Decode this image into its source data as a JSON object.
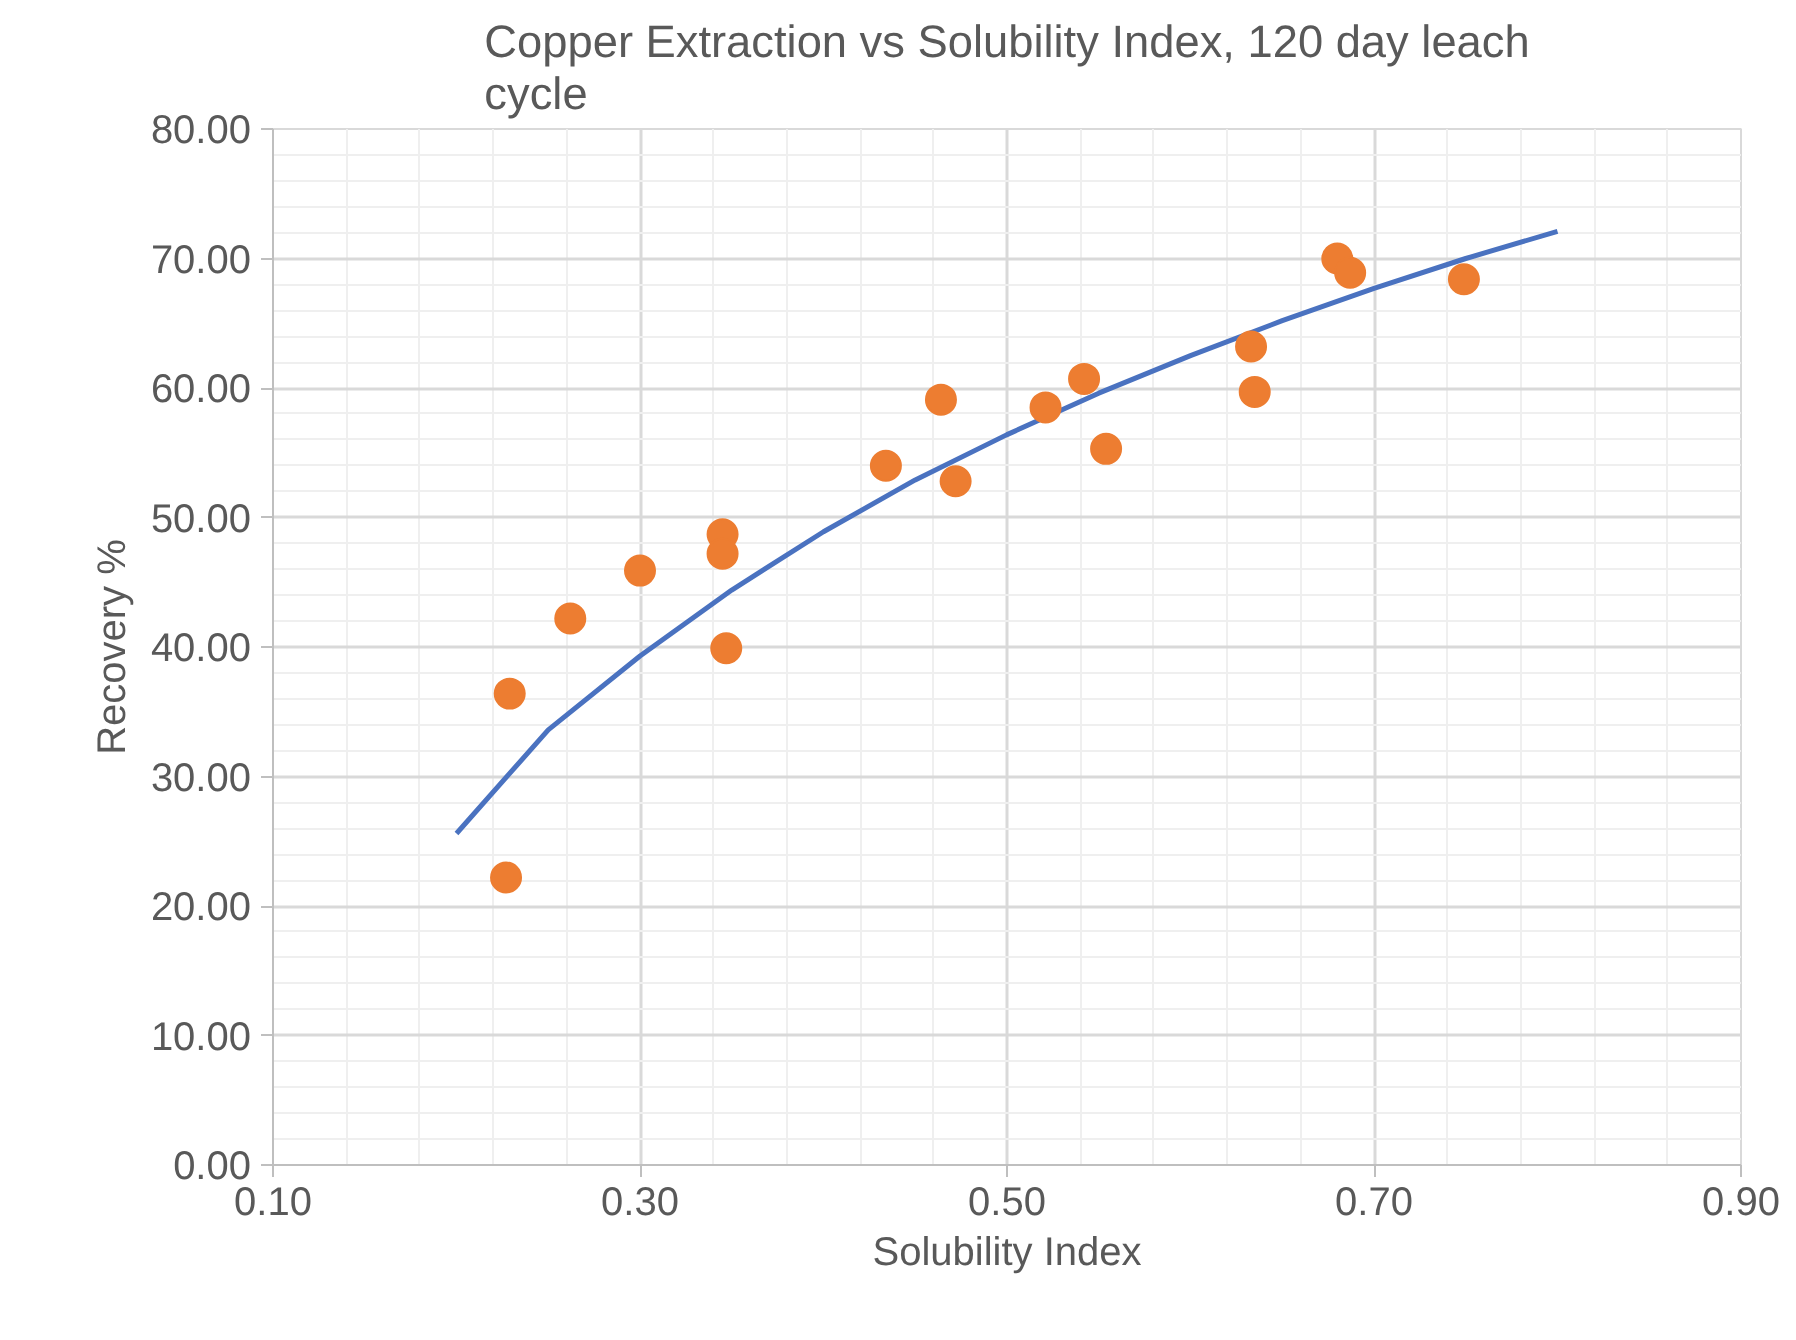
{
  "chart_data": {
    "type": "scatter",
    "title": "Copper Extraction vs Solubility Index, 120 day leach cycle",
    "xlabel": "Solubility Index",
    "ylabel": "Recovery %",
    "series": [
      {
        "marker": "circle",
        "color": "#ed7d31",
        "x": [
          0.227,
          0.229,
          0.262,
          0.3,
          0.345,
          0.345,
          0.347,
          0.434,
          0.464,
          0.472,
          0.521,
          0.542,
          0.554,
          0.633,
          0.635,
          0.68,
          0.687,
          0.749
        ],
        "values": [
          22.2,
          36.4,
          42.2,
          45.9,
          48.7,
          47.2,
          39.9,
          54.0,
          59.1,
          52.8,
          58.5,
          60.7,
          55.3,
          63.2,
          59.7,
          70.0,
          68.9,
          68.4
        ]
      },
      {
        "type": "line",
        "color": "#4a72c0",
        "x": [
          0.2,
          0.25,
          0.3,
          0.35,
          0.4,
          0.45,
          0.5,
          0.55,
          0.6,
          0.65,
          0.7,
          0.75,
          0.8
        ],
        "values": [
          25.6,
          33.6,
          39.3,
          44.4,
          48.9,
          52.9,
          56.4,
          59.6,
          62.5,
          65.2,
          67.7,
          70.0,
          72.1
        ]
      }
    ],
    "xlim": [
      0.1,
      0.9
    ],
    "ylim": [
      0,
      80
    ],
    "xticks": [
      {
        "value": 0.1,
        "label": "0.10"
      },
      {
        "value": 0.3,
        "label": "0.30"
      },
      {
        "value": 0.5,
        "label": "0.50"
      },
      {
        "value": 0.7,
        "label": "0.70"
      },
      {
        "value": 0.9,
        "label": "0.90"
      }
    ],
    "yticks": [
      {
        "value": 0,
        "label": "0.00"
      },
      {
        "value": 10,
        "label": "10.00"
      },
      {
        "value": 20,
        "label": "20.00"
      },
      {
        "value": 30,
        "label": "30.00"
      },
      {
        "value": 40,
        "label": "40.00"
      },
      {
        "value": 50,
        "label": "50.00"
      },
      {
        "value": 60,
        "label": "60.00"
      },
      {
        "value": 70,
        "label": "70.00"
      },
      {
        "value": 80,
        "label": "80.00"
      }
    ],
    "grid": true,
    "line_style": "solid"
  }
}
